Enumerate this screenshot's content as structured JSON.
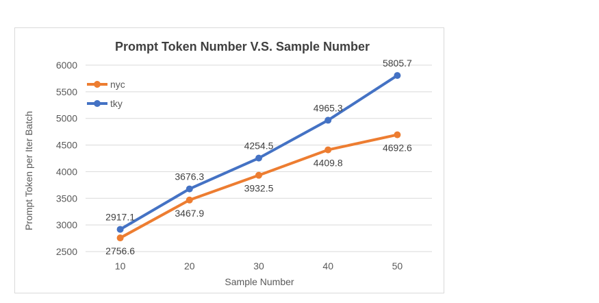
{
  "chart_data": {
    "type": "line",
    "title": "Prompt Token Number V.S. Sample Number",
    "xlabel": "Sample Number",
    "ylabel": "Prompt Token per Iter Batch",
    "x": [
      10,
      20,
      30,
      40,
      50
    ],
    "ylim": [
      2500,
      6000
    ],
    "yticks": [
      2500,
      3000,
      3500,
      4000,
      4500,
      5000,
      5500,
      6000
    ],
    "grid": true,
    "legend_position": "top-left",
    "series": [
      {
        "name": "nyc",
        "color": "#ED7D31",
        "values": [
          2756.6,
          3467.9,
          3932.5,
          4409.8,
          4692.6
        ],
        "labels": [
          "2756.6",
          "3467.9",
          "3932.5",
          "4409.8",
          "4692.6"
        ],
        "label_position": "below"
      },
      {
        "name": "tky",
        "color": "#4472C4",
        "values": [
          2917.1,
          3676.3,
          4254.5,
          4965.3,
          5805.7
        ],
        "labels": [
          "2917.1",
          "3676.3",
          "4254.5",
          "4965.3",
          "5805.7"
        ],
        "label_position": "above"
      }
    ]
  }
}
